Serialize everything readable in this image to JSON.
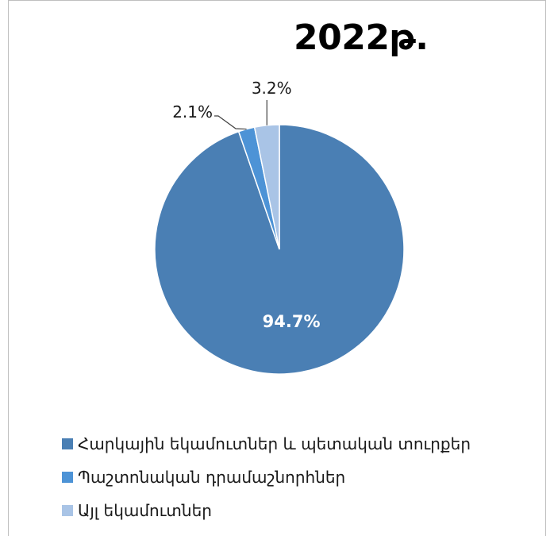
{
  "chart_data": {
    "type": "pie",
    "title": "2022թ.",
    "categories": [
      "Հարկային եկամուտներ և պետական տուրքեր",
      "Պաշտոնական դրամաշնորհներ",
      "Այլ եկամուտներ"
    ],
    "values": [
      94.7,
      2.1,
      3.2
    ],
    "data_labels": [
      "94.7%",
      "2.1%",
      "3.2%"
    ],
    "colors": [
      "#4a7fb4",
      "#4d93d6",
      "#a9c4e6"
    ],
    "legend_position": "bottom-left"
  }
}
